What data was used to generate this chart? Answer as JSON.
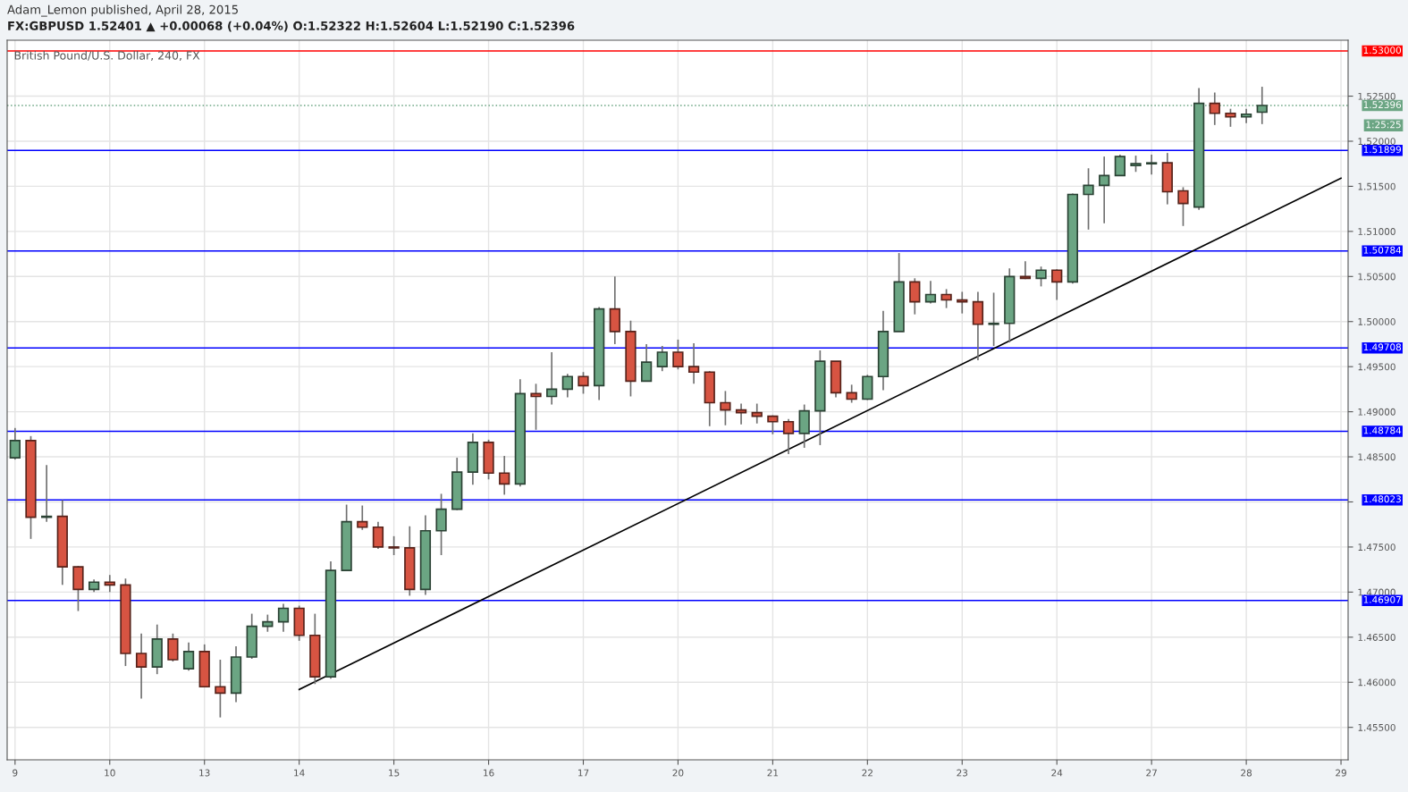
{
  "chart_data": {
    "type": "candlestick",
    "title": "Adam_Lemon published, April 28, 2015",
    "subtitle": "FX:GBPUSD 1.52401 ▲ +0.00068 (+0.04%) O:1.52322 H:1.52604 L:1.52190 C:1.52396",
    "annotations": [
      "British Pound/U.S. Dollar, 240, FX",
      "1:25:25"
    ],
    "categories": [
      "9",
      null,
      null,
      null,
      null,
      null,
      "10",
      null,
      null,
      null,
      null,
      null,
      "13",
      null,
      null,
      null,
      null,
      null,
      "14",
      null,
      null,
      null,
      null,
      null,
      "15",
      null,
      null,
      null,
      null,
      null,
      "16",
      null,
      null,
      null,
      null,
      null,
      "17",
      null,
      null,
      null,
      null,
      null,
      "20",
      null,
      null,
      null,
      null,
      null,
      "21",
      null,
      null,
      null,
      null,
      null,
      "22",
      null,
      null,
      null,
      null,
      null,
      "23",
      null,
      null,
      null,
      null,
      null,
      "24",
      null,
      null,
      null,
      null,
      null,
      "27",
      null,
      null,
      null,
      null,
      null,
      "28",
      null,
      null,
      null,
      null,
      null,
      "29"
    ],
    "ohlc": [
      [
        1.4849,
        1.4882,
        1.4847,
        1.4868
      ],
      [
        1.4868,
        1.4873,
        1.4759,
        1.4783
      ],
      [
        1.4783,
        1.4841,
        1.4778,
        1.4784
      ],
      [
        1.4784,
        1.4802,
        1.4708,
        1.4728
      ],
      [
        1.4728,
        1.4729,
        1.4679,
        1.4703
      ],
      [
        1.4703,
        1.4714,
        1.47,
        1.4711
      ],
      [
        1.4711,
        1.4719,
        1.47,
        1.4708
      ],
      [
        1.4708,
        1.4715,
        1.4618,
        1.4632
      ],
      [
        1.4632,
        1.4654,
        1.4582,
        1.4617
      ],
      [
        1.4617,
        1.4664,
        1.4609,
        1.4648
      ],
      [
        1.4648,
        1.4654,
        1.4623,
        1.4625
      ],
      [
        1.4615,
        1.4644,
        1.4613,
        1.4634
      ],
      [
        1.4634,
        1.4642,
        1.4595,
        1.4595
      ],
      [
        1.4595,
        1.4625,
        1.4561,
        1.4588
      ],
      [
        1.4588,
        1.464,
        1.4578,
        1.4628
      ],
      [
        1.4628,
        1.4676,
        1.4626,
        1.4662
      ],
      [
        1.4662,
        1.4675,
        1.4656,
        1.4667
      ],
      [
        1.4667,
        1.4687,
        1.4656,
        1.4682
      ],
      [
        1.4682,
        1.4685,
        1.4646,
        1.4652
      ],
      [
        1.4652,
        1.4676,
        1.4598,
        1.4606
      ],
      [
        1.4606,
        1.4734,
        1.4604,
        1.4724
      ],
      [
        1.4724,
        1.4797,
        1.4724,
        1.4778
      ],
      [
        1.4778,
        1.4796,
        1.4769,
        1.4772
      ],
      [
        1.4772,
        1.4778,
        1.4748,
        1.475
      ],
      [
        1.475,
        1.4762,
        1.4741,
        1.4749
      ],
      [
        1.4749,
        1.4773,
        1.4696,
        1.4703
      ],
      [
        1.4703,
        1.4785,
        1.4697,
        1.4768
      ],
      [
        1.4768,
        1.4809,
        1.4741,
        1.4792
      ],
      [
        1.4792,
        1.4849,
        1.4791,
        1.4833
      ],
      [
        1.4833,
        1.4876,
        1.4819,
        1.4866
      ],
      [
        1.4866,
        1.4869,
        1.4825,
        1.4832
      ],
      [
        1.4832,
        1.4851,
        1.4808,
        1.482
      ],
      [
        1.482,
        1.4936,
        1.4817,
        1.492
      ],
      [
        1.492,
        1.4931,
        1.488,
        1.4917
      ],
      [
        1.4917,
        1.4966,
        1.4908,
        1.4925
      ],
      [
        1.4925,
        1.4942,
        1.4916,
        1.4939
      ],
      [
        1.4939,
        1.4944,
        1.492,
        1.4929
      ],
      [
        1.4929,
        1.5016,
        1.4913,
        1.5014
      ],
      [
        1.5014,
        1.505,
        1.4975,
        1.4989
      ],
      [
        1.4989,
        1.5001,
        1.4917,
        1.4934
      ],
      [
        1.4934,
        1.4975,
        1.4934,
        1.4955
      ],
      [
        1.495,
        1.4973,
        1.4945,
        1.4966
      ],
      [
        1.4966,
        1.498,
        1.4947,
        1.495
      ],
      [
        1.495,
        1.4976,
        1.4931,
        1.4944
      ],
      [
        1.4944,
        1.4945,
        1.4884,
        1.491
      ],
      [
        1.491,
        1.4923,
        1.4885,
        1.4902
      ],
      [
        1.4902,
        1.4909,
        1.4886,
        1.4899
      ],
      [
        1.4899,
        1.4909,
        1.4887,
        1.4895
      ],
      [
        1.4895,
        1.4896,
        1.4875,
        1.4889
      ],
      [
        1.4889,
        1.4892,
        1.4853,
        1.4876
      ],
      [
        1.4876,
        1.4908,
        1.486,
        1.4901
      ],
      [
        1.4901,
        1.4968,
        1.4863,
        1.4956
      ],
      [
        1.4956,
        1.4956,
        1.4916,
        1.4921
      ],
      [
        1.4921,
        1.493,
        1.491,
        1.4914
      ],
      [
        1.4914,
        1.4941,
        1.4913,
        1.4939
      ],
      [
        1.4939,
        1.5012,
        1.4924,
        1.4989
      ],
      [
        1.4989,
        1.5076,
        1.4989,
        1.5044
      ],
      [
        1.5044,
        1.5048,
        1.5008,
        1.5022
      ],
      [
        1.5022,
        1.5045,
        1.502,
        1.503
      ],
      [
        1.503,
        1.5036,
        1.5015,
        1.5024
      ],
      [
        1.5024,
        1.5033,
        1.5009,
        1.5022
      ],
      [
        1.5022,
        1.5033,
        1.4957,
        1.4997
      ],
      [
        1.4997,
        1.5032,
        1.4973,
        1.4998
      ],
      [
        1.4998,
        1.5059,
        1.4977,
        1.505
      ],
      [
        1.505,
        1.5067,
        1.5047,
        1.5048
      ],
      [
        1.5048,
        1.5061,
        1.5039,
        1.5057
      ],
      [
        1.5057,
        1.5058,
        1.5024,
        1.5044
      ],
      [
        1.5044,
        1.5142,
        1.5042,
        1.5141
      ],
      [
        1.5141,
        1.517,
        1.5102,
        1.5151
      ],
      [
        1.5151,
        1.5183,
        1.5109,
        1.5162
      ],
      [
        1.5162,
        1.5185,
        1.5162,
        1.5183
      ],
      [
        1.5173,
        1.5184,
        1.5166,
        1.5175
      ],
      [
        1.5175,
        1.5185,
        1.5163,
        1.5176
      ],
      [
        1.5176,
        1.5187,
        1.513,
        1.5144
      ],
      [
        1.5145,
        1.5149,
        1.5106,
        1.5131
      ],
      [
        1.5127,
        1.5259,
        1.5124,
        1.5242
      ],
      [
        1.5242,
        1.5254,
        1.5218,
        1.5231
      ],
      [
        1.5231,
        1.5236,
        1.5216,
        1.5227
      ],
      [
        1.5227,
        1.5236,
        1.522,
        1.523
      ],
      [
        1.52322,
        1.52604,
        1.5219,
        1.52396
      ],
      null,
      null,
      null,
      null,
      null
    ],
    "colors": [
      "#6ba583",
      "#d75442",
      "#6ba583",
      "#d75442",
      "#d75442",
      "#6ba583",
      "#d75442",
      "#d75442",
      "#d75442",
      "#6ba583",
      "#d75442",
      "#6ba583",
      "#d75442",
      "#d75442",
      "#6ba583",
      "#6ba583",
      "#6ba583",
      "#6ba583",
      "#d75442",
      "#d75442",
      "#6ba583",
      "#6ba583",
      "#d75442",
      "#d75442",
      "#d75442",
      "#d75442",
      "#6ba583",
      "#6ba583",
      "#6ba583",
      "#6ba583",
      "#d75442",
      "#d75442",
      "#6ba583",
      "#d75442",
      "#6ba583",
      "#6ba583",
      "#d75442",
      "#6ba583",
      "#d75442",
      "#d75442",
      "#6ba583",
      "#6ba583",
      "#d75442",
      "#d75442",
      "#d75442",
      "#d75442",
      "#d75442",
      "#d75442",
      "#d75442",
      "#d75442",
      "#6ba583",
      "#6ba583",
      "#d75442",
      "#d75442",
      "#6ba583",
      "#6ba583",
      "#6ba583",
      "#d75442",
      "#6ba583",
      "#d75442",
      "#d75442",
      "#d75442",
      "#6ba583",
      "#6ba583",
      "#d75442",
      "#6ba583",
      "#d75442",
      "#6ba583",
      "#6ba583",
      "#6ba583",
      "#6ba583",
      "#6ba583",
      "#6ba583",
      "#d75442",
      "#d75442",
      "#6ba583",
      "#d75442",
      "#d75442",
      "#6ba583",
      "#6ba583",
      null,
      null,
      null,
      null,
      null
    ],
    "series": [
      {
        "type": "line",
        "values": [
          null,
          null,
          null,
          null,
          null,
          null,
          null,
          null,
          null,
          null,
          null,
          null,
          null,
          null,
          null,
          null,
          null,
          null,
          1.4592,
          null,
          null,
          null,
          null,
          null,
          null,
          null,
          null,
          null,
          null,
          null,
          null,
          null,
          null,
          null,
          null,
          null,
          null,
          null,
          null,
          null,
          null,
          null,
          null,
          null,
          null,
          null,
          null,
          null,
          null,
          null,
          null,
          null,
          null,
          null,
          null,
          null,
          null,
          null,
          null,
          null,
          null,
          null,
          null,
          null,
          null,
          null,
          null,
          null,
          null,
          null,
          null,
          null,
          null,
          null,
          null,
          null,
          null,
          null,
          null,
          null,
          null,
          null,
          null,
          null,
          1.5159
        ],
        "color": "#000000"
      }
    ],
    "ylim": [
      1.4514,
      1.5312
    ],
    "yticks": [
      {
        "value": 1.455,
        "label": "1.45500"
      },
      {
        "value": 1.46,
        "label": "1.46000"
      },
      {
        "value": 1.465,
        "label": "1.46500"
      },
      {
        "value": 1.47,
        "label": "1.47000"
      },
      {
        "value": 1.475,
        "label": "1.47500"
      },
      {
        "value": 1.48,
        "label": null
      },
      {
        "value": 1.485,
        "label": "1.48500"
      },
      {
        "value": 1.49,
        "label": "1.49000"
      },
      {
        "value": 1.495,
        "label": "1.49500"
      },
      {
        "value": 1.5,
        "label": "1.50000"
      },
      {
        "value": 1.505,
        "label": "1.50500"
      },
      {
        "value": 1.51,
        "label": "1.51000"
      },
      {
        "value": 1.515,
        "label": "1.51500"
      },
      {
        "value": 1.52,
        "label": "1.52000"
      },
      {
        "value": 1.525,
        "label": "1.52500"
      }
    ],
    "ref_lines": [
      {
        "axis": "y",
        "value": 1.53,
        "label": "1.53000",
        "color": "#ff0000",
        "line_style": "solid"
      },
      {
        "axis": "y",
        "value": 1.52396,
        "label": "1.52396",
        "color": "#6ba583",
        "line_style": "dotted"
      },
      {
        "axis": "y",
        "value": 1.51899,
        "label": "1.51899",
        "color": "#0000ff",
        "line_style": "solid"
      },
      {
        "axis": "y",
        "value": 1.50784,
        "label": "1.50784",
        "color": "#0000ff",
        "line_style": "solid"
      },
      {
        "axis": "y",
        "value": 1.49708,
        "label": "1.49708",
        "color": "#0000ff",
        "line_style": "solid"
      },
      {
        "axis": "y",
        "value": 1.48784,
        "label": "1.48784",
        "color": "#0000ff",
        "line_style": "solid"
      },
      {
        "axis": "y",
        "value": 1.48023,
        "label": "1.48023",
        "color": "#0000ff",
        "line_style": "solid"
      },
      {
        "axis": "y",
        "value": 1.46907,
        "label": "1.46907",
        "color": "#0000ff",
        "line_style": "solid"
      }
    ],
    "grid": true,
    "legend": false
  }
}
